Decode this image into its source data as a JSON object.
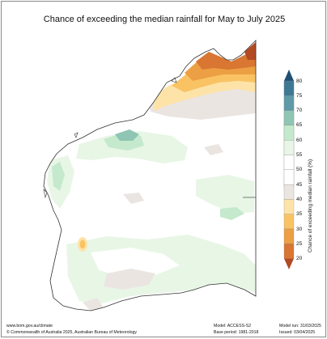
{
  "title": "Chance of exceeding the median rainfall for May to July 2025",
  "legend": {
    "title": "Chance of exceeding median rainfall (%)",
    "ticks": [
      "80",
      "75",
      "70",
      "65",
      "60",
      "55",
      "50",
      "45",
      "40",
      "35",
      "30",
      "25",
      "20"
    ],
    "colors": {
      "80": "#1f4f73",
      "75": "#3f7893",
      "70": "#5e9aa8",
      "65": "#8fc5b3",
      "60": "#c4e9cc",
      "55": "#e8f6e6",
      "50": "#ffffff",
      "45": "#ebe5e2",
      "40": "#fde3a8",
      "35": "#f9c364",
      "30": "#ec9f43",
      "25": "#d87632",
      "20": "#b24a23"
    }
  },
  "footer": {
    "website": "www.bom.gov.au/climate",
    "copyright": "© Commonwealth of Australia 2025, Australian Bureau of Meteorology",
    "model": "Model: ACCESS-S2",
    "base_period": "Base period: 1981-2018",
    "model_run": "Model run: 31/03/2025",
    "issued": "Issued: 03/04/2025"
  }
}
